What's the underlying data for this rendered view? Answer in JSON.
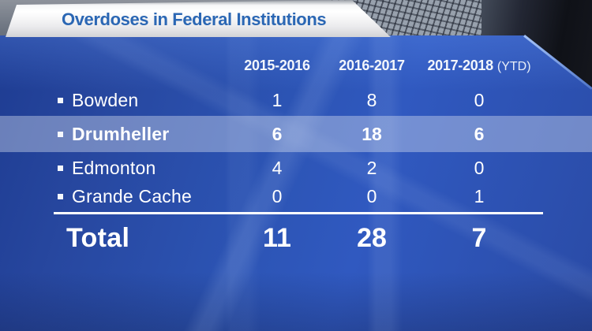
{
  "title": "Overdoses in Federal Institutions",
  "table": {
    "columns": [
      "2015-2016",
      "2016-2017",
      "2017-2018"
    ],
    "ytd_suffix": "(YTD)",
    "rows": [
      {
        "label": "Bowden",
        "values": [
          "1",
          "8",
          "0"
        ],
        "highlighted": false
      },
      {
        "label": "Drumheller",
        "values": [
          "6",
          "18",
          "6"
        ],
        "highlighted": true
      },
      {
        "label": "Edmonton",
        "values": [
          "4",
          "2",
          "0"
        ],
        "highlighted": false
      },
      {
        "label": "Grande Cache",
        "values": [
          "0",
          "0",
          "1"
        ],
        "highlighted": false
      }
    ],
    "total": {
      "label": "Total",
      "values": [
        "11",
        "28",
        "7"
      ]
    }
  },
  "colors": {
    "panel_blue": "#2c54b4",
    "panel_blue_dark": "#1e3c92",
    "highlight_row": "#8b9ac9",
    "title_text_blue": "#2b67b4",
    "banner_white": "#f3f4f5",
    "text_white": "#ffffff",
    "photo_dark": "#15171e"
  },
  "chart_data": {
    "type": "table",
    "title": "Overdoses in Federal Institutions",
    "categories": [
      "Bowden",
      "Drumheller",
      "Edmonton",
      "Grande Cache",
      "Total"
    ],
    "columns": [
      "2015-2016",
      "2016-2017",
      "2017-2018 (YTD)"
    ],
    "series": [
      {
        "name": "2015-2016",
        "values": [
          1,
          6,
          4,
          0,
          11
        ]
      },
      {
        "name": "2016-2017",
        "values": [
          8,
          18,
          2,
          0,
          28
        ]
      },
      {
        "name": "2017-2018 (YTD)",
        "values": [
          0,
          6,
          0,
          1,
          7
        ]
      }
    ],
    "highlighted_row": "Drumheller",
    "legend_position": "none",
    "grid": false
  }
}
